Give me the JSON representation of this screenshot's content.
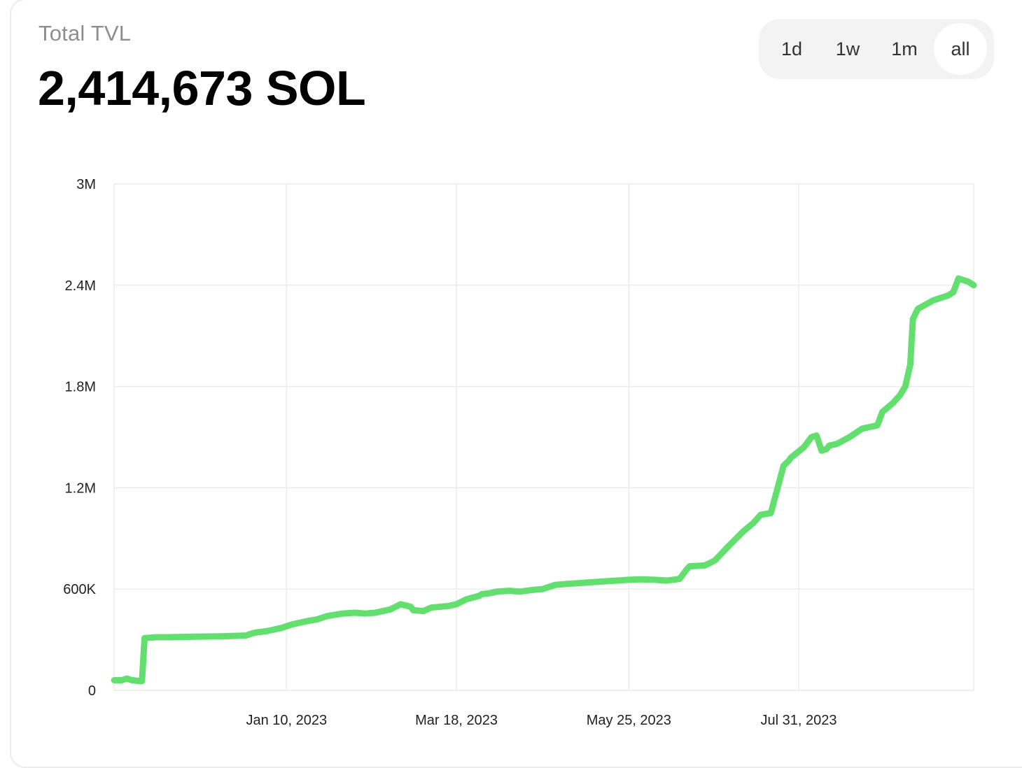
{
  "header": {
    "title": "Total TVL",
    "value": "2,414,673 SOL"
  },
  "range_selector": {
    "options": [
      "1d",
      "1w",
      "1m",
      "all"
    ],
    "selected": "all"
  },
  "colors": {
    "line": "#62df6e",
    "grid": "#ececec",
    "active_tab_bg": "#ffffff",
    "tab_group_bg": "#f3f3f3"
  },
  "chart_data": {
    "type": "line",
    "title": "",
    "xlabel": "",
    "ylabel": "",
    "ylim": [
      0,
      3000000
    ],
    "y_ticks": [
      0,
      600000,
      1200000,
      1800000,
      2400000,
      3000000
    ],
    "y_tick_labels": [
      "0",
      "600K",
      "1.2M",
      "1.8M",
      "2.4M",
      "3M"
    ],
    "x_ticks": [
      "2023-01-10",
      "2023-03-18",
      "2023-05-25",
      "2023-07-31"
    ],
    "x_tick_labels": [
      "Jan 10, 2023",
      "Mar 18, 2023",
      "May 25, 2023",
      "Jul 31, 2023"
    ],
    "xlim": [
      "2022-11-03",
      "2023-10-08"
    ],
    "grid": true,
    "legend": "none",
    "series": [
      {
        "x": [
          "2022-11-03",
          "2022-11-06",
          "2022-11-08",
          "2022-11-10",
          "2022-11-13",
          "2022-11-14",
          "2022-11-15",
          "2022-11-20",
          "2022-11-25",
          "2022-12-05",
          "2022-12-15",
          "2022-12-25",
          "2022-12-28",
          "2022-12-30",
          "2023-01-02",
          "2023-01-05",
          "2023-01-08",
          "2023-01-12",
          "2023-01-18",
          "2023-01-22",
          "2023-01-26",
          "2023-02-01",
          "2023-02-06",
          "2023-02-10",
          "2023-02-14",
          "2023-02-20",
          "2023-02-24",
          "2023-02-28",
          "2023-03-01",
          "2023-03-05",
          "2023-03-08",
          "2023-03-15",
          "2023-03-18",
          "2023-03-22",
          "2023-03-27",
          "2023-03-28",
          "2023-03-31",
          "2023-04-03",
          "2023-04-08",
          "2023-04-12",
          "2023-04-17",
          "2023-04-21",
          "2023-04-26",
          "2023-04-30",
          "2023-05-05",
          "2023-05-10",
          "2023-05-15",
          "2023-05-20",
          "2023-05-25",
          "2023-05-30",
          "2023-06-04",
          "2023-06-09",
          "2023-06-14",
          "2023-06-17",
          "2023-06-18",
          "2023-06-24",
          "2023-06-28",
          "2023-07-03",
          "2023-07-07",
          "2023-07-09",
          "2023-07-13",
          "2023-07-16",
          "2023-07-20",
          "2023-07-25",
          "2023-07-27",
          "2023-07-28",
          "2023-08-02",
          "2023-08-05",
          "2023-08-07",
          "2023-08-09",
          "2023-08-11",
          "2023-08-12",
          "2023-08-15",
          "2023-08-20",
          "2023-08-25",
          "2023-08-31",
          "2023-09-02",
          "2023-09-06",
          "2023-09-09",
          "2023-09-11",
          "2023-09-13",
          "2023-09-14",
          "2023-09-16",
          "2023-09-22",
          "2023-09-28",
          "2023-09-30",
          "2023-10-02",
          "2023-10-06",
          "2023-10-08"
        ],
        "y": [
          60000,
          60000,
          70000,
          60000,
          55000,
          55000,
          310000,
          315000,
          315000,
          318000,
          320000,
          325000,
          340000,
          345000,
          350000,
          360000,
          370000,
          390000,
          410000,
          420000,
          440000,
          455000,
          460000,
          455000,
          460000,
          480000,
          510000,
          495000,
          475000,
          470000,
          490000,
          500000,
          510000,
          540000,
          560000,
          570000,
          575000,
          585000,
          590000,
          585000,
          595000,
          600000,
          625000,
          630000,
          635000,
          640000,
          645000,
          650000,
          655000,
          658000,
          655000,
          650000,
          660000,
          720000,
          735000,
          740000,
          770000,
          850000,
          910000,
          940000,
          990000,
          1040000,
          1050000,
          1330000,
          1360000,
          1380000,
          1440000,
          1500000,
          1510000,
          1420000,
          1430000,
          1450000,
          1460000,
          1500000,
          1550000,
          1570000,
          1650000,
          1700000,
          1750000,
          1800000,
          1930000,
          2200000,
          2260000,
          2310000,
          2340000,
          2360000,
          2440000,
          2420000,
          2400000
        ]
      }
    ]
  }
}
